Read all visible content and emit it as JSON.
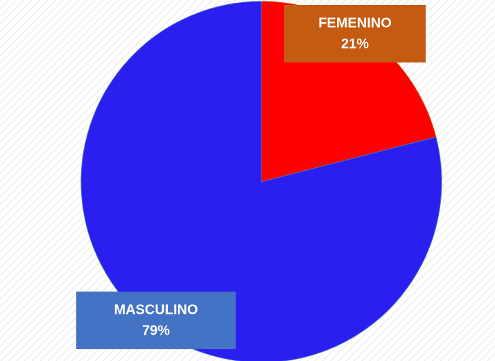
{
  "chart_data": {
    "type": "pie",
    "categories": [
      "FEMENINO",
      "MASCULINO"
    ],
    "values": [
      21,
      79
    ],
    "value_labels": [
      "21%",
      "79%"
    ],
    "colors": [
      "#ff0000",
      "#2a1ef0"
    ],
    "label_colors": [
      "#c55a11",
      "#4472c4"
    ]
  }
}
